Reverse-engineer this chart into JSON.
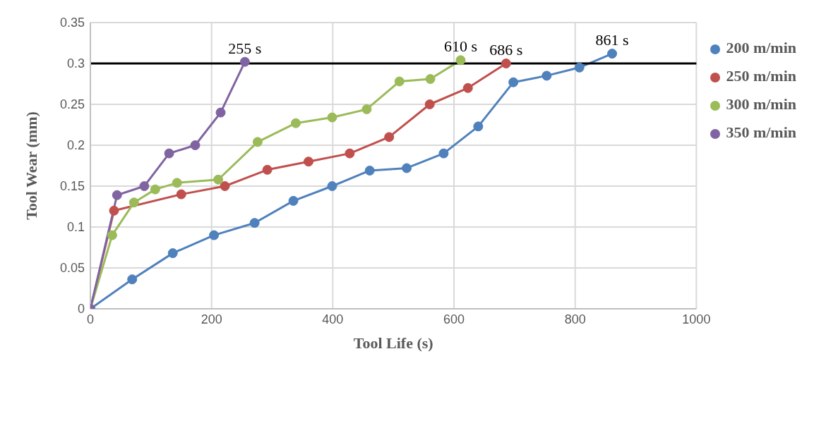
{
  "chart_data": {
    "type": "line",
    "xlabel": "Tool Life (s)",
    "ylabel": "Tool Wear (mm)",
    "xlim": [
      0,
      1000
    ],
    "xticks": [
      0,
      200,
      400,
      600,
      800,
      1000
    ],
    "ylim": [
      0,
      0.35
    ],
    "yticks": [
      0,
      0.05,
      0.1,
      0.15,
      0.2,
      0.25,
      0.3,
      0.35
    ],
    "grid": true,
    "legend": "right",
    "marker": "circle",
    "line_style": "solid",
    "series": [
      {
        "name": "200 m/min",
        "color": "#4f81bd",
        "x": [
          0,
          69,
          136,
          204,
          271,
          335,
          399,
          461,
          522,
          583,
          640,
          698,
          753,
          807,
          861
        ],
        "values": [
          0,
          0.036,
          0.068,
          0.09,
          0.105,
          0.132,
          0.15,
          0.169,
          0.172,
          0.19,
          0.223,
          0.277,
          0.285,
          0.295,
          0.312
        ]
      },
      {
        "name": "250 m/min",
        "color": "#c0504d",
        "x": [
          0,
          39,
          150,
          222,
          292,
          360,
          428,
          493,
          560,
          623,
          686
        ],
        "values": [
          0,
          0.12,
          0.14,
          0.15,
          0.17,
          0.18,
          0.19,
          0.21,
          0.25,
          0.27,
          0.3
        ]
      },
      {
        "name": "300 m/min",
        "color": "#9bbb59",
        "x": [
          0,
          36,
          72,
          107,
          143,
          211,
          276,
          339,
          399,
          456,
          510,
          561,
          611
        ],
        "values": [
          0,
          0.09,
          0.13,
          0.146,
          0.154,
          0.158,
          0.204,
          0.227,
          0.234,
          0.244,
          0.278,
          0.281,
          0.304
        ]
      },
      {
        "name": "350 m/min",
        "color": "#8064a2",
        "x": [
          0,
          44,
          89,
          130,
          173,
          215,
          255
        ],
        "values": [
          0,
          0.139,
          0.15,
          0.19,
          0.2,
          0.24,
          0.302
        ]
      }
    ],
    "ref_lines": [
      {
        "axis": "y",
        "value": 0.3,
        "color": "#000000",
        "line_style": "solid"
      }
    ],
    "annotations": [
      {
        "text": "255 s",
        "x": 255,
        "y": 0.302
      },
      {
        "text": "610 s",
        "x": 611,
        "y": 0.304
      },
      {
        "text": "686 s",
        "x": 686,
        "y": 0.3
      },
      {
        "text": "861 s",
        "x": 861,
        "y": 0.312
      }
    ]
  }
}
